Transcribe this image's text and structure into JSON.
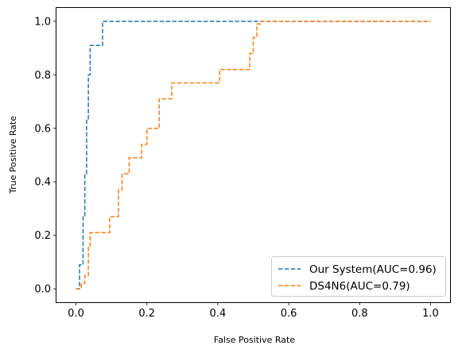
{
  "chart_data": {
    "type": "line",
    "title": "",
    "xlabel": "False Positive Rate",
    "ylabel": "True Positive Rate",
    "xlim": [
      -0.055,
      1.055
    ],
    "ylim": [
      -0.05,
      1.05
    ],
    "xticks": [
      0.0,
      0.2,
      0.4,
      0.6,
      0.8,
      1.0
    ],
    "xtick_labels": [
      "0.0",
      "0.2",
      "0.4",
      "0.6",
      "0.8",
      "1.0"
    ],
    "yticks": [
      0.0,
      0.2,
      0.4,
      0.6,
      0.8,
      1.0
    ],
    "ytick_labels": [
      "0.0",
      "0.2",
      "0.4",
      "0.6",
      "0.8",
      "1.0"
    ],
    "grid": false,
    "legend_position": "lower-right",
    "series": [
      {
        "name": "Our System(AUC=0.96)",
        "color": "#1f77b4",
        "line_style": "dashed",
        "x": [
          0.0,
          0.01,
          0.01,
          0.02,
          0.02,
          0.025,
          0.025,
          0.03,
          0.03,
          0.035,
          0.035,
          0.04,
          0.04,
          0.075,
          0.075,
          0.52,
          1.0
        ],
        "y": [
          0.0,
          0.0,
          0.09,
          0.09,
          0.27,
          0.27,
          0.43,
          0.43,
          0.63,
          0.63,
          0.8,
          0.8,
          0.91,
          0.91,
          1.0,
          1.0,
          1.0
        ]
      },
      {
        "name": "DS4N6(AUC=0.79)",
        "color": "#ff7f0e",
        "line_style": "dashed",
        "x": [
          0.0,
          0.015,
          0.015,
          0.025,
          0.025,
          0.035,
          0.035,
          0.04,
          0.04,
          0.095,
          0.095,
          0.12,
          0.12,
          0.13,
          0.13,
          0.15,
          0.15,
          0.185,
          0.185,
          0.2,
          0.2,
          0.235,
          0.235,
          0.27,
          0.27,
          0.405,
          0.405,
          0.49,
          0.49,
          0.5,
          0.5,
          0.51,
          0.51,
          0.52,
          0.52,
          1.0
        ],
        "y": [
          0.0,
          0.0,
          0.02,
          0.02,
          0.05,
          0.05,
          0.16,
          0.16,
          0.21,
          0.21,
          0.27,
          0.27,
          0.37,
          0.37,
          0.43,
          0.43,
          0.49,
          0.49,
          0.54,
          0.54,
          0.6,
          0.6,
          0.71,
          0.71,
          0.77,
          0.77,
          0.82,
          0.82,
          0.88,
          0.88,
          0.94,
          0.94,
          0.99,
          0.99,
          1.0,
          1.0
        ]
      }
    ]
  }
}
